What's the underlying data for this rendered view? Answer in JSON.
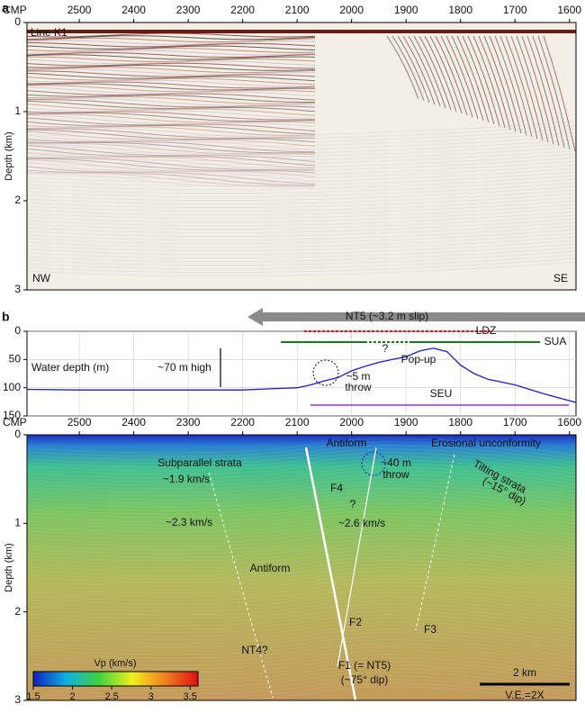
{
  "chart_data": [
    {
      "type": "seismic",
      "label": "a",
      "title": "Line K1",
      "x_label": "CMP",
      "y_label": "Depth (km)",
      "xlim": [
        2596,
        1588
      ],
      "xticks": [
        2500,
        2400,
        2300,
        2200,
        2100,
        2000,
        1900,
        1800,
        1700,
        1600
      ],
      "ylim": [
        0,
        3
      ],
      "yticks": [
        0,
        1,
        2,
        3
      ],
      "annotations": [
        "NW",
        "SE"
      ]
    },
    {
      "type": "line",
      "label": "b",
      "y_label": "Water depth (m)",
      "x": [
        2596,
        2500,
        2400,
        2300,
        2200,
        2150,
        2100,
        2075,
        2050,
        2025,
        2000,
        1975,
        1950,
        1925,
        1900,
        1875,
        1850,
        1825,
        1800,
        1775,
        1750,
        1700,
        1650,
        1620,
        1588
      ],
      "series": [
        {
          "name": "Water depth (m)",
          "color": "#1a1ad0",
          "values": [
            103,
            104,
            104,
            104,
            104,
            102,
            100,
            95,
            88,
            82,
            70,
            62,
            55,
            50,
            45,
            35,
            30,
            36,
            60,
            75,
            85,
            95,
            110,
            118,
            126
          ]
        }
      ],
      "xlim": [
        2596,
        1588
      ],
      "xticks": [
        2500,
        2400,
        2300,
        2200,
        2100,
        2000,
        1900,
        1800,
        1700,
        1600
      ],
      "ylim": [
        0,
        150
      ],
      "yticks": [
        0,
        50,
        100,
        150
      ],
      "grid": true,
      "annotations": [
        "NT5 (~3.2 m slip)",
        "LDZ",
        "SUA",
        "?",
        "~70 m high",
        "~5 m",
        "throw",
        "Pop-up",
        "SEU"
      ]
    },
    {
      "type": "velocity",
      "x_label": "CMP",
      "y_label": "Depth (km)",
      "xlim": [
        2596,
        1588
      ],
      "xticks": [
        2500,
        2400,
        2300,
        2200,
        2100,
        2000,
        1900,
        1800,
        1700,
        1600
      ],
      "ylim": [
        0,
        3
      ],
      "yticks": [
        0,
        1,
        2,
        3
      ],
      "colorbar": {
        "label": "Vp (km/s)",
        "lim": [
          1.5,
          3.6
        ],
        "ticks": [
          1.5,
          2.0,
          2.5,
          3.0,
          3.5
        ]
      },
      "annotations": [
        "Antiform",
        "Erosional unconformity",
        "Subparallel strata",
        "~1.9 km/s",
        "~2.3 km/s",
        "Antiform",
        "F4",
        "?",
        "~40 m",
        "throw",
        "~2.6 km/s",
        "Tilting strata",
        "(~15° dip)",
        "F2",
        "F3",
        "NT4?",
        "F1 (= NT5)",
        "(~75° dip)",
        "2 km",
        "V.E.=2X"
      ]
    }
  ]
}
